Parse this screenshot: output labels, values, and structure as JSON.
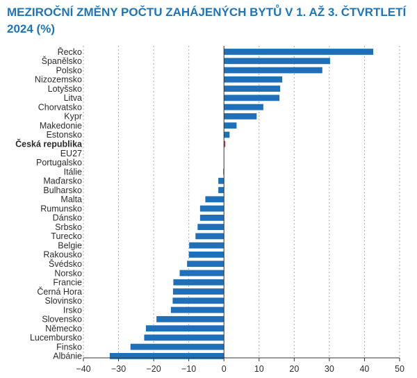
{
  "title_line1": "MEZIROČNÍ ZMĚNY POČTU ZAHÁJENÝCH BYTŮ V 1. AŽ 3. ČTVRTLETÍ",
  "title_line2": "2024 (%)",
  "chart_data": {
    "type": "bar",
    "orientation": "horizontal",
    "categories": [
      "Řecko",
      "Španělsko",
      "Polsko",
      "Nizozemsko",
      "Lotyšsko",
      "Litva",
      "Chorvatsko",
      "Kypr",
      "Makedonie",
      "Estonsko",
      "Česká republika",
      "EU27",
      "Portugalsko",
      "Itálie",
      "Maďarsko",
      "Bulharsko",
      "Malta",
      "Rumunsko",
      "Dánsko",
      "Srbsko",
      "Turecko",
      "Belgie",
      "Rakousko",
      "Švédsko",
      "Norsko",
      "Francie",
      "Černá Hora",
      "Slovinsko",
      "Irsko",
      "Slovensko",
      "Německo",
      "Lucembursko",
      "Finsko",
      "Albánie"
    ],
    "values": [
      42.5,
      30.2,
      28.0,
      16.6,
      16.0,
      15.8,
      11.2,
      9.3,
      3.6,
      1.6,
      0.4,
      0.0,
      0.0,
      -0.2,
      -1.6,
      -1.6,
      -5.3,
      -6.8,
      -6.8,
      -7.5,
      -8.1,
      -9.9,
      -10.0,
      -10.5,
      -12.6,
      -14.4,
      -14.5,
      -14.6,
      -15.1,
      -19.2,
      -22.2,
      -22.7,
      -26.6,
      -32.5
    ],
    "highlight": "Česká republika",
    "xlim": [
      -40,
      50
    ],
    "xticks": [
      "−40",
      "−30",
      "−20",
      "−10",
      "0",
      "10",
      "20",
      "30",
      "40",
      "50"
    ],
    "xtick_values": [
      -40,
      -30,
      -20,
      -10,
      0,
      10,
      20,
      30,
      40,
      50
    ],
    "grid": "vertical dotted",
    "colors": {
      "bar": "#1f70b8",
      "highlight": "#d9342b",
      "grid": "#aaaaaa",
      "axis": "#333333"
    }
  }
}
